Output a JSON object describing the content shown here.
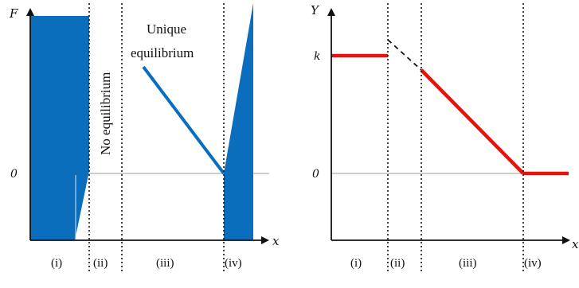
{
  "colors": {
    "blue": "#0a6ebd",
    "red": "#e8120c",
    "gray": "#bdbdbd",
    "black": "#111111"
  },
  "left_panel": {
    "y_axis_label": "F",
    "x_axis_label": "x",
    "zero_label": "0",
    "regions": [
      "(i)",
      "(ii)",
      "(iii)",
      "(iv)"
    ],
    "annotation_vertical": "No equilibrium",
    "annotation_unique": [
      "Unique",
      "equilibrium"
    ]
  },
  "right_panel": {
    "y_axis_label": "Y",
    "x_axis_label": "x",
    "k_label": "k",
    "zero_label": "0",
    "regions": [
      "(i)",
      "(ii)",
      "(iii)",
      "(iv)"
    ]
  }
}
